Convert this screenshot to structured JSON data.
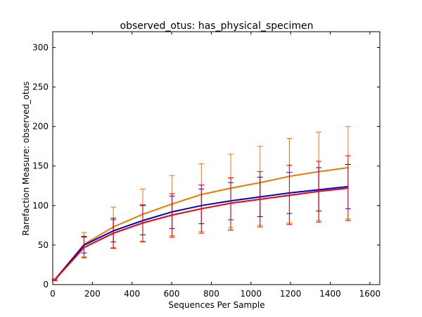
{
  "chart_data": {
    "type": "line",
    "title": "observed_otus: has_physical_specimen",
    "xlabel": "Sequences Per Sample",
    "ylabel": "Rarefaction Measure: observed_otus",
    "xlim": [
      0,
      1650
    ],
    "ylim": [
      0,
      320
    ],
    "xticks": [
      0,
      200,
      400,
      600,
      800,
      1000,
      1200,
      1400,
      1600
    ],
    "yticks": [
      0,
      50,
      100,
      150,
      200,
      250,
      300
    ],
    "grid": false,
    "legend": "none",
    "x": [
      10,
      158,
      306,
      454,
      602,
      750,
      898,
      1046,
      1194,
      1342,
      1490
    ],
    "series": [
      {
        "color": "#ee7700",
        "values": [
          6,
          51,
          73,
          89,
          102,
          114,
          122,
          129,
          137,
          143,
          148
        ],
        "err_low": [
          5,
          35,
          47,
          55,
          62,
          67,
          72,
          75,
          78,
          81,
          83
        ],
        "err_high": [
          7,
          66,
          98,
          121,
          138,
          153,
          165,
          175,
          185,
          193,
          200
        ]
      },
      {
        "color": "#0000cc",
        "values": [
          6,
          50,
          68,
          81,
          92,
          100,
          106,
          111,
          116,
          120,
          124
        ],
        "err_low": [
          5,
          40,
          54,
          63,
          71,
          77,
          82,
          86,
          90,
          93,
          96
        ],
        "err_high": [
          7,
          61,
          84,
          100,
          112,
          121,
          129,
          136,
          142,
          148,
          152
        ]
      },
      {
        "color": "#ee0000",
        "values": [
          6,
          47,
          65,
          78,
          88,
          96,
          103,
          108,
          113,
          118,
          122
        ],
        "err_low": [
          5,
          34,
          46,
          54,
          60,
          65,
          69,
          73,
          76,
          79,
          81
        ],
        "err_high": [
          7,
          60,
          82,
          101,
          115,
          126,
          135,
          143,
          151,
          156,
          163
        ]
      }
    ]
  }
}
